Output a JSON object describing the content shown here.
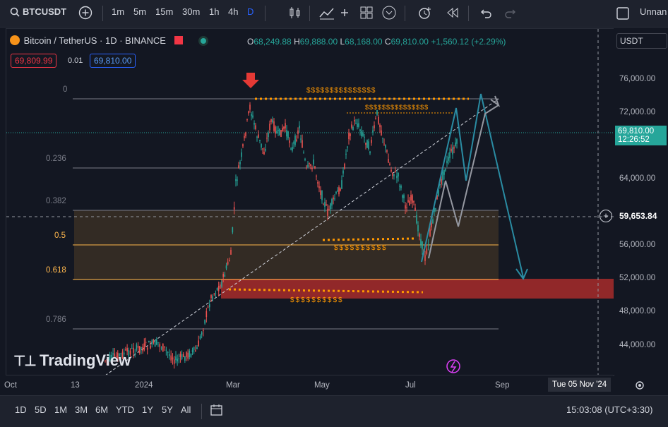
{
  "toolbar": {
    "symbol": "BTCUSDT",
    "intervals": [
      "1m",
      "5m",
      "15m",
      "30m",
      "1h",
      "4h",
      "D"
    ],
    "active_interval": "D",
    "layout_name": "Unnan"
  },
  "legend": {
    "title": "Bitcoin / TetherUS · 1D · BINANCE",
    "o_label": "O",
    "o": "68,249.88",
    "h_label": "H",
    "h": "69,888.00",
    "l_label": "L",
    "l": "68,168.00",
    "c_label": "C",
    "c": "69,810.00",
    "change": "+1,560.12 (+2.29%)",
    "sell": "69,809.99",
    "spread": "0.01",
    "buy": "69,810.00"
  },
  "price_axis": {
    "currency": "USDT",
    "ticks": [
      "76,000.00",
      "72,000.00",
      "64,000.00",
      "56,000.00",
      "52,000.00",
      "48,000.00",
      "44,000.00"
    ],
    "current_price": "69,810.00",
    "countdown": "12:26:52",
    "crosshair_price": "59,653.84"
  },
  "fib_levels": [
    "0",
    "0.236",
    "0.382",
    "0.5",
    "0.618",
    "0.786"
  ],
  "annotations": {
    "liquidity_top": "$$$$$$$$$$$$$$$",
    "liquidity_top2": "$$$$$$$$$$$$$$$",
    "liquidity_mid": "$$$$$$$$$$",
    "liquidity_low": "$$$$$$$$$$"
  },
  "watermark": "TradingView",
  "time_axis": {
    "labels": [
      "Oct",
      "13",
      "2024",
      "Mar",
      "May",
      "Jul",
      "Sep"
    ],
    "crosshair_date": "Tue 05 Nov '24"
  },
  "bottom": {
    "ranges": [
      "1D",
      "5D",
      "1M",
      "3M",
      "6M",
      "YTD",
      "1Y",
      "5Y",
      "All"
    ],
    "clock": "15:03:08 (UTC+3:30)"
  },
  "colors": {
    "bg": "#131722",
    "up": "#26a69a",
    "down": "#ef5350",
    "fib_zone": "#3b2f22",
    "red_zone": "#b2302b",
    "orange": "#ff9800",
    "projection_teal": "#2a8ca3"
  }
}
